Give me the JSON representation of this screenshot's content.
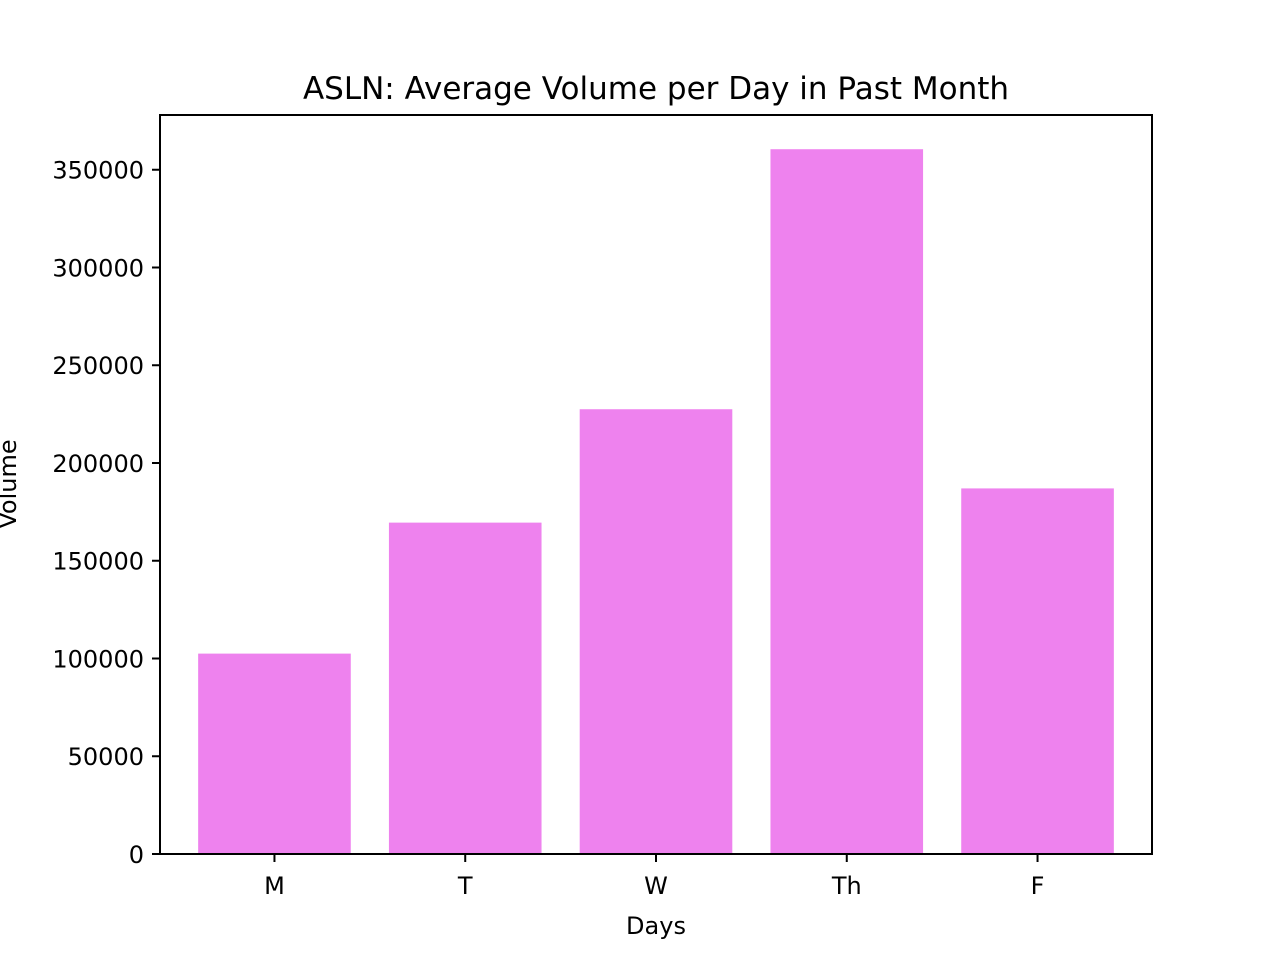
{
  "chart_data": {
    "type": "bar",
    "title": "ASLN: Average Volume per Day in Past Month",
    "xlabel": "Days",
    "ylabel": "Volume",
    "categories": [
      "M",
      "T",
      "W",
      "Th",
      "F"
    ],
    "values": [
      102500,
      169500,
      227500,
      360500,
      187000
    ],
    "ylim": [
      0,
      378000
    ],
    "yticks": [
      0,
      50000,
      100000,
      150000,
      200000,
      250000,
      300000,
      350000
    ],
    "ytick_labels": [
      "0",
      "50000",
      "100000",
      "150000",
      "200000",
      "250000",
      "300000",
      "350000"
    ],
    "bar_color": "#ee82ee",
    "grid": false,
    "legend": "none"
  }
}
